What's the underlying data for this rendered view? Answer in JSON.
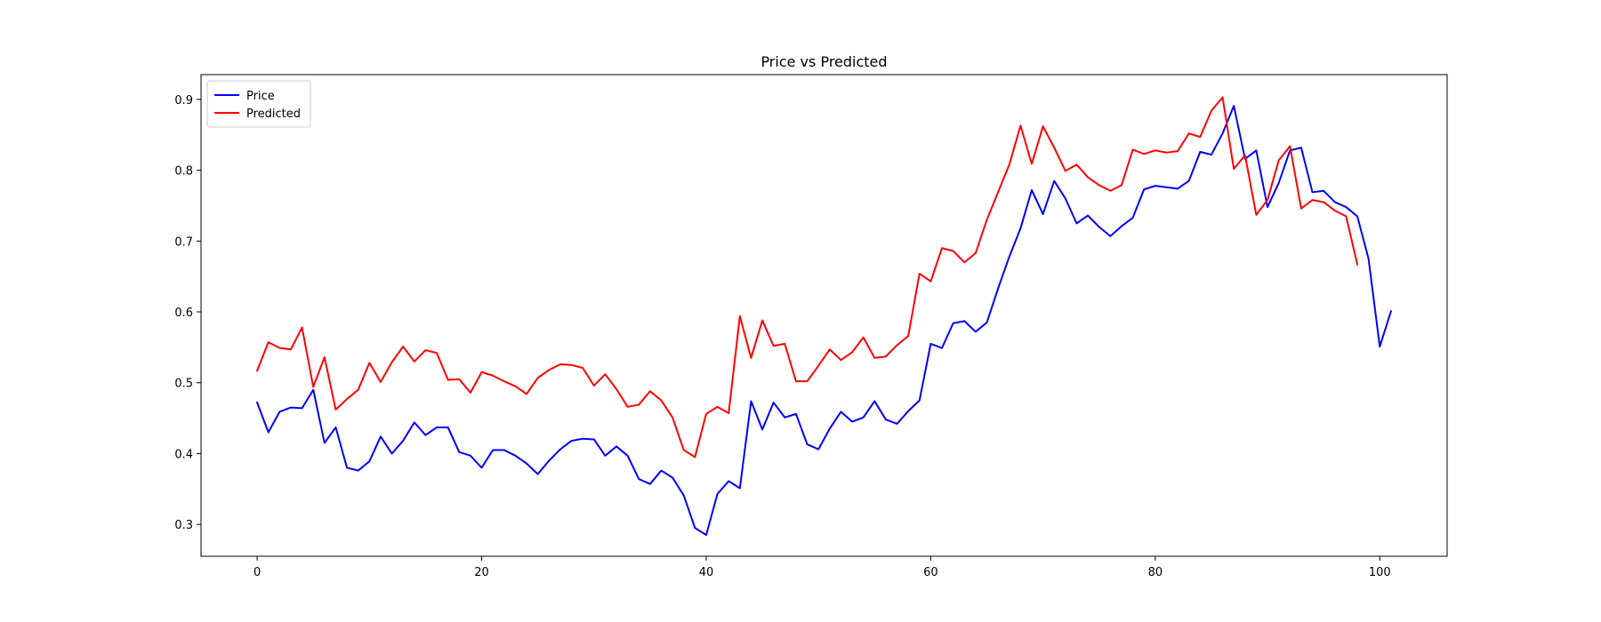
{
  "chart_data": {
    "type": "line",
    "title": "Price vs Predicted",
    "xlabel": "",
    "ylabel": "",
    "xlim": [
      -5,
      106
    ],
    "ylim": [
      0.255,
      0.935
    ],
    "xticks": [
      0,
      20,
      40,
      60,
      80,
      100
    ],
    "yticks": [
      0.3,
      0.4,
      0.5,
      0.6,
      0.7,
      0.8,
      0.9
    ],
    "grid": false,
    "legend_position": "top-left",
    "series": [
      {
        "name": "Price",
        "color": "#0000ff",
        "start_x": 0,
        "values": [
          0.472,
          0.43,
          0.459,
          0.465,
          0.464,
          0.49,
          0.415,
          0.437,
          0.38,
          0.376,
          0.389,
          0.424,
          0.4,
          0.418,
          0.444,
          0.426,
          0.437,
          0.437,
          0.402,
          0.397,
          0.38,
          0.405,
          0.405,
          0.397,
          0.386,
          0.371,
          0.39,
          0.406,
          0.418,
          0.421,
          0.42,
          0.397,
          0.41,
          0.397,
          0.364,
          0.357,
          0.376,
          0.366,
          0.341,
          0.295,
          0.285,
          0.343,
          0.361,
          0.351,
          0.474,
          0.434,
          0.472,
          0.451,
          0.456,
          0.413,
          0.406,
          0.435,
          0.459,
          0.445,
          0.451,
          0.474,
          0.448,
          0.442,
          0.46,
          0.475,
          0.555,
          0.549,
          0.584,
          0.587,
          0.572,
          0.585,
          0.633,
          0.678,
          0.718,
          0.772,
          0.738,
          0.785,
          0.76,
          0.725,
          0.736,
          0.72,
          0.707,
          0.721,
          0.733,
          0.773,
          0.778,
          0.776,
          0.774,
          0.785,
          0.826,
          0.822,
          0.852,
          0.891,
          0.816,
          0.828,
          0.748,
          0.782,
          0.828,
          0.832,
          0.769,
          0.771,
          0.755,
          0.748,
          0.735,
          0.675,
          0.551,
          0.601
        ]
      },
      {
        "name": "Predicted",
        "color": "#ff0000",
        "start_x": 0,
        "values": [
          0.517,
          0.557,
          0.549,
          0.547,
          0.578,
          0.494,
          0.536,
          0.462,
          0.477,
          0.49,
          0.528,
          0.501,
          0.529,
          0.551,
          0.53,
          0.546,
          0.542,
          0.504,
          0.505,
          0.486,
          0.515,
          0.51,
          0.502,
          0.495,
          0.484,
          0.507,
          0.518,
          0.526,
          0.525,
          0.521,
          0.496,
          0.512,
          0.491,
          0.466,
          0.469,
          0.488,
          0.475,
          0.451,
          0.405,
          0.395,
          0.456,
          0.466,
          0.457,
          0.594,
          0.535,
          0.588,
          0.552,
          0.555,
          0.502,
          0.502,
          0.524,
          0.547,
          0.532,
          0.543,
          0.564,
          0.535,
          0.537,
          0.553,
          0.566,
          0.654,
          0.643,
          0.69,
          0.686,
          0.67,
          0.683,
          0.73,
          0.769,
          0.808,
          0.863,
          0.809,
          0.862,
          0.832,
          0.799,
          0.808,
          0.79,
          0.779,
          0.771,
          0.779,
          0.829,
          0.823,
          0.828,
          0.825,
          0.827,
          0.852,
          0.847,
          0.884,
          0.903,
          0.802,
          0.821,
          0.737,
          0.758,
          0.814,
          0.834,
          0.746,
          0.758,
          0.755,
          0.743,
          0.735,
          0.667
        ]
      }
    ]
  }
}
